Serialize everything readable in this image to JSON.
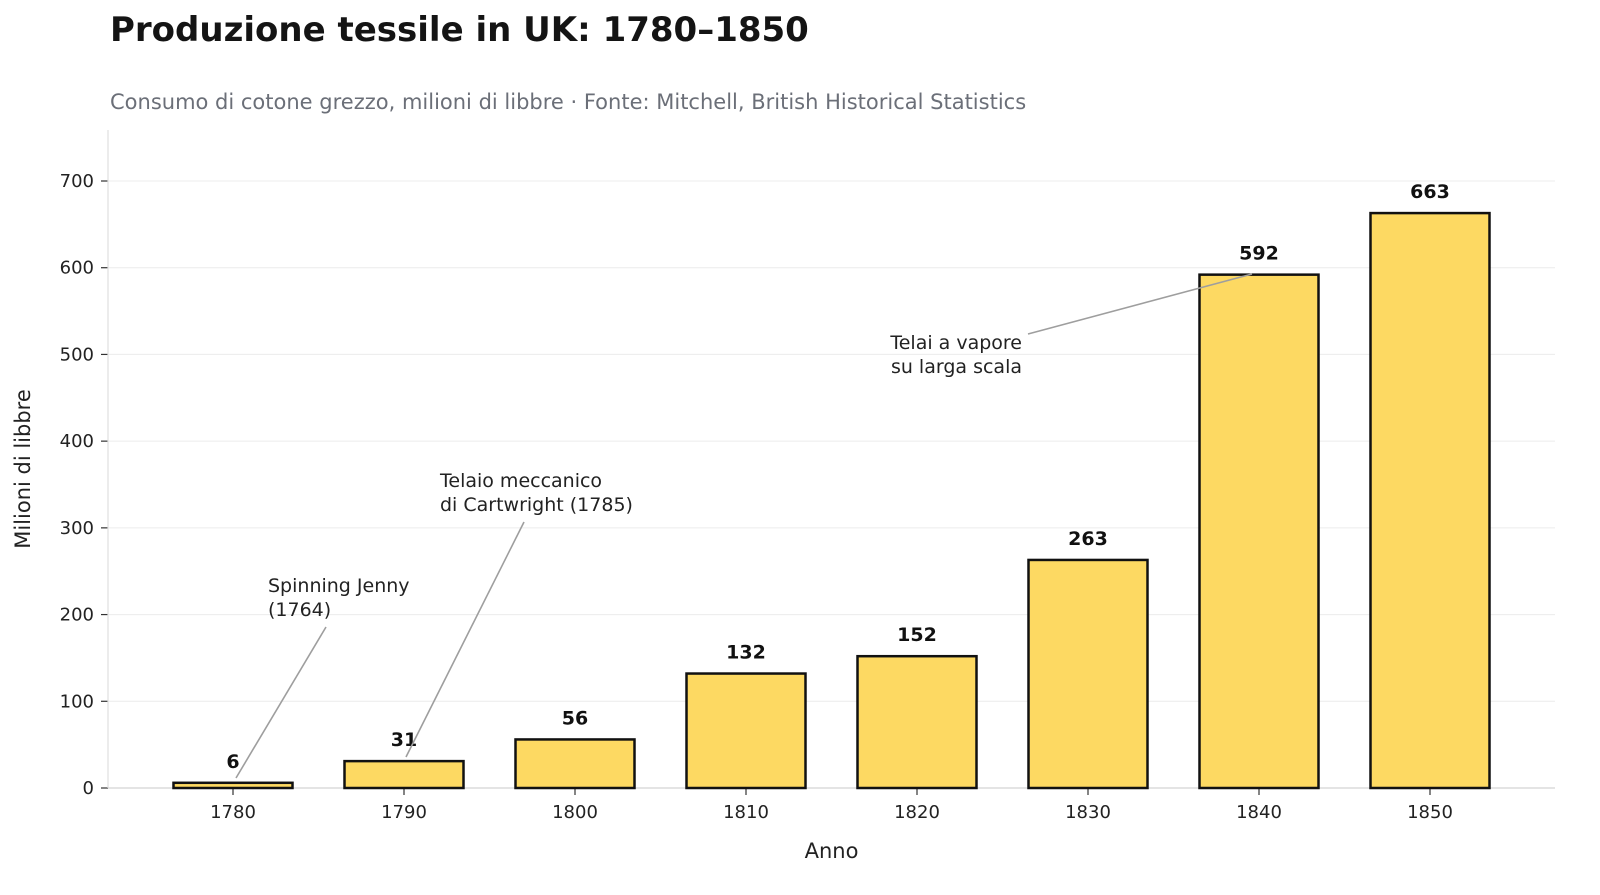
{
  "chart_data": {
    "type": "bar",
    "title": "Produzione tessile in UK: 1780–1850",
    "subtitle": "Consumo di cotone grezzo, milioni di libbre · Fonte: Mitchell, British Historical Statistics",
    "xlabel": "Anno",
    "ylabel": "Milioni di libbre",
    "categories": [
      "1780",
      "1790",
      "1800",
      "1810",
      "1820",
      "1830",
      "1840",
      "1850"
    ],
    "values": [
      6,
      31,
      56,
      132,
      152,
      263,
      592,
      663
    ],
    "ylim": [
      0,
      760
    ],
    "yticks": [
      0,
      100,
      200,
      300,
      400,
      500,
      600,
      700
    ],
    "grid": "horizontal",
    "bar_color": "#FDD962",
    "bar_edge_color": "#111111",
    "annotations": [
      {
        "lines": [
          "Spinning Jenny",
          "(1764)"
        ],
        "target_category": "1780"
      },
      {
        "lines": [
          "Telaio meccanico",
          "di Cartwright (1785)"
        ],
        "target_category": "1790"
      },
      {
        "lines": [
          "Telai a vapore",
          "su larga scala"
        ],
        "target_category": "1840"
      }
    ]
  }
}
